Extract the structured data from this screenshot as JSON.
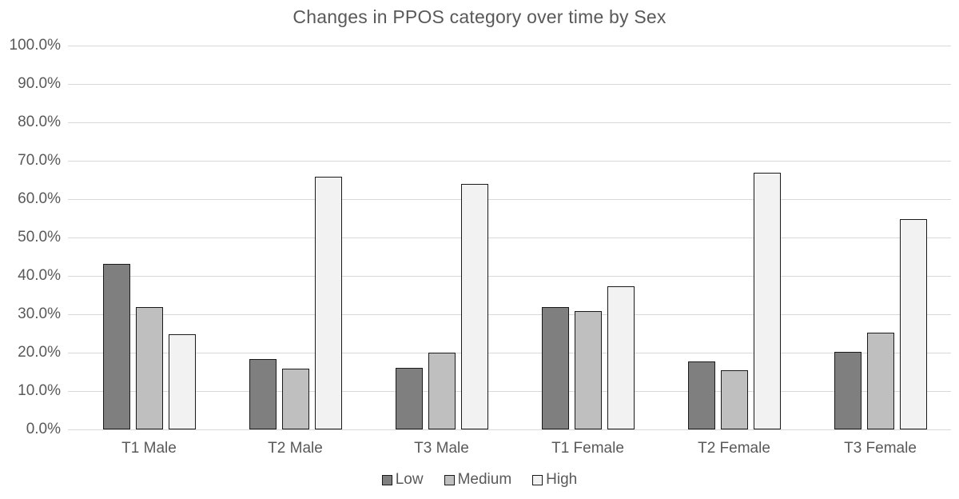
{
  "chart_data": {
    "type": "bar",
    "title": "Changes in PPOS category over time by Sex",
    "categories": [
      "T1 Male",
      "T2 Male",
      "T3 Male",
      "T1 Female",
      "T2 Female",
      "T3 Female"
    ],
    "series": [
      {
        "name": "Low",
        "color": "#7f7f7f",
        "values": [
          43.2,
          18.4,
          16.1,
          31.8,
          17.7,
          20.2
        ]
      },
      {
        "name": "Medium",
        "color": "#bfbfbf",
        "values": [
          31.9,
          15.8,
          20.0,
          30.9,
          15.5,
          25.3
        ]
      },
      {
        "name": "High",
        "color": "#f2f2f2",
        "values": [
          24.7,
          65.8,
          64.0,
          37.3,
          66.9,
          54.7
        ]
      }
    ],
    "ylim": [
      0,
      100
    ],
    "ytick_labels_top_to_bottom": [
      "100.0%",
      "90.0%",
      "80.0%",
      "70.0%",
      "60.0%",
      "50.0%",
      "40.0%",
      "30.0%",
      "20.0%",
      "10.0%",
      "0.0%"
    ],
    "grid": true,
    "legend_position": "bottom",
    "colors": {
      "bar_border": "#1a1a1a",
      "gridline": "#d9d9d9",
      "text": "#595959",
      "background": "#ffffff"
    }
  }
}
